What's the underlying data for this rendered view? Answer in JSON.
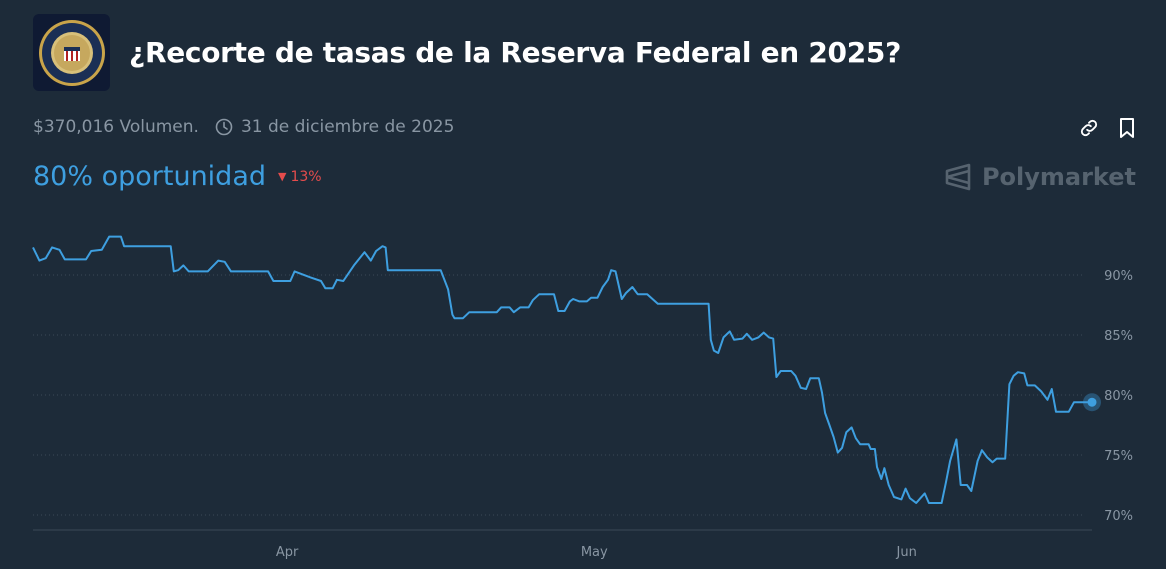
{
  "header": {
    "title": "¿Recorte de tasas de la Reserva Federal en 2025?",
    "logo_icon": "federal-reserve-seal"
  },
  "meta": {
    "volume": "$370,016 Volumen.",
    "end_date": "31 de diciembre de 2025"
  },
  "actions": {
    "link_icon": "link-icon",
    "bookmark_icon": "bookmark-icon"
  },
  "chance": {
    "label": "80% oportunidad",
    "delta": "13%",
    "delta_direction": "down"
  },
  "brand": {
    "name": "Polymarket"
  },
  "colors": {
    "line": "#3e9fe0",
    "background": "#1d2b39",
    "down": "#e54c4c",
    "grid": "#3a4856"
  },
  "chart_data": {
    "type": "line",
    "xlabel": "",
    "ylabel": "",
    "ylim": [
      69,
      94
    ],
    "yticks": [
      70,
      75,
      80,
      85,
      90
    ],
    "ytick_labels": [
      "70%",
      "75%",
      "80%",
      "85%",
      "90%"
    ],
    "xticks": [
      {
        "label": "Apr",
        "t": 0.24
      },
      {
        "label": "May",
        "t": 0.53
      },
      {
        "label": "Jun",
        "t": 0.825
      }
    ],
    "grid": true,
    "y_axis_side": "right",
    "series": [
      {
        "values": [
          [
            0.0,
            92.3
          ],
          [
            0.006,
            91.2
          ],
          [
            0.012,
            91.4
          ],
          [
            0.018,
            92.3
          ],
          [
            0.025,
            92.1
          ],
          [
            0.03,
            91.3
          ],
          [
            0.05,
            91.3
          ],
          [
            0.055,
            92.0
          ],
          [
            0.065,
            92.1
          ],
          [
            0.072,
            93.2
          ],
          [
            0.083,
            93.2
          ],
          [
            0.086,
            92.4
          ],
          [
            0.13,
            92.4
          ],
          [
            0.133,
            90.3
          ],
          [
            0.137,
            90.4
          ],
          [
            0.142,
            90.8
          ],
          [
            0.147,
            90.3
          ],
          [
            0.165,
            90.3
          ],
          [
            0.175,
            91.2
          ],
          [
            0.181,
            91.1
          ],
          [
            0.187,
            90.3
          ],
          [
            0.222,
            90.3
          ],
          [
            0.227,
            89.5
          ],
          [
            0.243,
            89.5
          ],
          [
            0.247,
            90.3
          ],
          [
            0.253,
            90.1
          ],
          [
            0.262,
            89.8
          ],
          [
            0.272,
            89.5
          ],
          [
            0.276,
            88.9
          ],
          [
            0.283,
            88.9
          ],
          [
            0.287,
            89.6
          ],
          [
            0.293,
            89.5
          ],
          [
            0.303,
            90.8
          ],
          [
            0.313,
            91.9
          ],
          [
            0.319,
            91.2
          ],
          [
            0.324,
            92.0
          ],
          [
            0.33,
            92.4
          ],
          [
            0.333,
            92.3
          ],
          [
            0.335,
            90.4
          ],
          [
            0.385,
            90.4
          ],
          [
            0.392,
            88.8
          ],
          [
            0.396,
            86.7
          ],
          [
            0.398,
            86.4
          ],
          [
            0.406,
            86.4
          ],
          [
            0.412,
            86.9
          ],
          [
            0.438,
            86.9
          ],
          [
            0.442,
            87.3
          ],
          [
            0.45,
            87.3
          ],
          [
            0.454,
            86.9
          ],
          [
            0.46,
            87.3
          ],
          [
            0.468,
            87.3
          ],
          [
            0.472,
            87.9
          ],
          [
            0.478,
            88.4
          ],
          [
            0.492,
            88.4
          ],
          [
            0.496,
            87.0
          ],
          [
            0.502,
            87.0
          ],
          [
            0.507,
            87.8
          ],
          [
            0.51,
            88.0
          ],
          [
            0.516,
            87.8
          ],
          [
            0.523,
            87.8
          ],
          [
            0.527,
            88.1
          ],
          [
            0.533,
            88.1
          ],
          [
            0.538,
            89.0
          ],
          [
            0.543,
            89.6
          ],
          [
            0.546,
            90.4
          ],
          [
            0.55,
            90.3
          ],
          [
            0.556,
            88.0
          ],
          [
            0.56,
            88.5
          ],
          [
            0.566,
            89.0
          ],
          [
            0.571,
            88.4
          ],
          [
            0.58,
            88.4
          ],
          [
            0.585,
            88.0
          ],
          [
            0.59,
            87.6
          ],
          [
            0.638,
            87.6
          ],
          [
            0.64,
            84.6
          ],
          [
            0.643,
            83.7
          ],
          [
            0.647,
            83.5
          ],
          [
            0.652,
            84.8
          ],
          [
            0.658,
            85.3
          ],
          [
            0.662,
            84.6
          ],
          [
            0.67,
            84.7
          ],
          [
            0.674,
            85.1
          ],
          [
            0.679,
            84.6
          ],
          [
            0.685,
            84.8
          ],
          [
            0.69,
            85.2
          ],
          [
            0.695,
            84.8
          ],
          [
            0.699,
            84.7
          ],
          [
            0.702,
            81.5
          ],
          [
            0.706,
            82.0
          ],
          [
            0.716,
            82.0
          ],
          [
            0.72,
            81.6
          ],
          [
            0.725,
            80.6
          ],
          [
            0.73,
            80.5
          ],
          [
            0.734,
            81.4
          ],
          [
            0.742,
            81.4
          ],
          [
            0.745,
            80.2
          ],
          [
            0.748,
            78.5
          ],
          [
            0.752,
            77.5
          ],
          [
            0.756,
            76.5
          ],
          [
            0.76,
            75.2
          ],
          [
            0.764,
            75.6
          ],
          [
            0.768,
            76.9
          ],
          [
            0.773,
            77.3
          ],
          [
            0.777,
            76.4
          ],
          [
            0.781,
            75.9
          ],
          [
            0.789,
            75.9
          ],
          [
            0.791,
            75.5
          ],
          [
            0.795,
            75.5
          ],
          [
            0.797,
            74.0
          ],
          [
            0.801,
            73.0
          ],
          [
            0.804,
            73.9
          ],
          [
            0.808,
            72.5
          ],
          [
            0.813,
            71.5
          ],
          [
            0.82,
            71.3
          ],
          [
            0.824,
            72.2
          ],
          [
            0.828,
            71.4
          ],
          [
            0.834,
            71.0
          ],
          [
            0.838,
            71.4
          ],
          [
            0.842,
            71.8
          ],
          [
            0.846,
            71.0
          ],
          [
            0.858,
            71.0
          ],
          [
            0.862,
            72.7
          ],
          [
            0.866,
            74.5
          ],
          [
            0.872,
            76.3
          ],
          [
            0.876,
            72.5
          ],
          [
            0.882,
            72.5
          ],
          [
            0.886,
            72.0
          ],
          [
            0.892,
            74.5
          ],
          [
            0.896,
            75.4
          ],
          [
            0.901,
            74.8
          ],
          [
            0.906,
            74.4
          ],
          [
            0.91,
            74.7
          ],
          [
            0.918,
            74.7
          ],
          [
            0.922,
            80.9
          ],
          [
            0.926,
            81.6
          ],
          [
            0.93,
            81.9
          ],
          [
            0.936,
            81.8
          ],
          [
            0.939,
            80.8
          ],
          [
            0.946,
            80.8
          ],
          [
            0.952,
            80.3
          ],
          [
            0.958,
            79.6
          ],
          [
            0.962,
            80.5
          ],
          [
            0.966,
            78.6
          ],
          [
            0.978,
            78.6
          ],
          [
            0.983,
            79.4
          ],
          [
            0.99,
            79.4
          ],
          [
            1.0,
            79.4
          ]
        ]
      }
    ]
  }
}
